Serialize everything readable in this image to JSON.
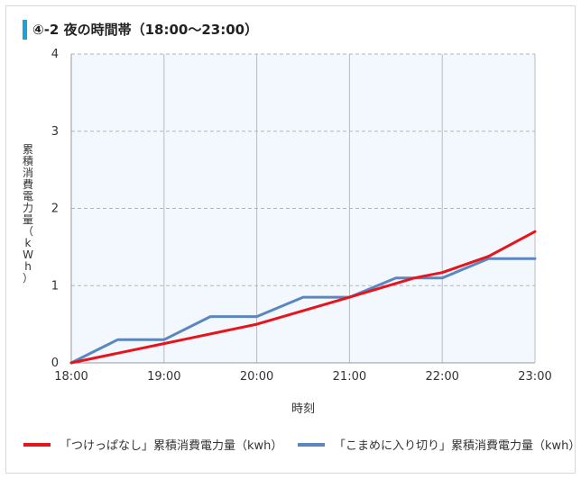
{
  "title": "④-2 夜の時間帯（18:00〜23:00）",
  "chart_data": {
    "type": "line",
    "title": "④-2 夜の時間帯（18:00〜23:00）",
    "xlabel": "時刻",
    "ylabel": "累積消費電力量（kWh）",
    "x_ticks": [
      "18:00",
      "19:00",
      "20:00",
      "21:00",
      "22:00",
      "23:00"
    ],
    "y_ticks": [
      "0",
      "1",
      "2",
      "3",
      "4"
    ],
    "xlim": [
      "18:00",
      "23:00"
    ],
    "ylim": [
      0,
      4
    ],
    "grid": {
      "vertical": true,
      "horizontal_dashed": true
    },
    "legend_position": "bottom",
    "series": [
      {
        "name": "「つけっぱなし」累積消費電力量（kwh）",
        "color": "#e8141c",
        "x": [
          "18:00",
          "19:00",
          "19:12",
          "20:00",
          "21:00",
          "21:42",
          "22:00",
          "22:30",
          "23:00"
        ],
        "values": [
          0,
          0.25,
          0.3,
          0.5,
          0.85,
          1.1,
          1.17,
          1.38,
          1.7
        ]
      },
      {
        "name": "「こまめに入り切り」累積消費電力量（kwh）",
        "color": "#5b86c0",
        "x": [
          "18:00",
          "18:15",
          "18:25",
          "18:30",
          "19:00",
          "19:30",
          "20:00",
          "20:30",
          "21:00",
          "21:30",
          "22:00",
          "22:30",
          "23:00"
        ],
        "values": [
          0,
          0.15,
          0.25,
          0.3,
          0.3,
          0.6,
          0.6,
          0.85,
          0.85,
          1.1,
          1.1,
          1.35,
          1.35
        ]
      }
    ]
  }
}
